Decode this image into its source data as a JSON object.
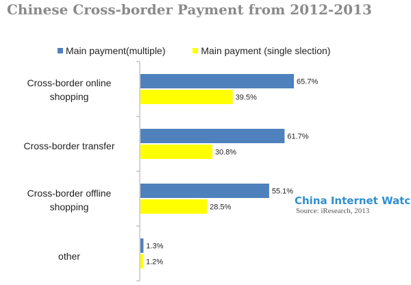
{
  "colors": {
    "multiple": "#4f81bd",
    "single": "#ffff00",
    "axis": "#aaaaaa"
  },
  "watermark": "China Internet Watch",
  "source": "Source: iResearch, 2013",
  "chart_data": {
    "type": "bar",
    "orientation": "horizontal",
    "title": "Chinese Cross-border Payment from 2012-2013",
    "categories": [
      "Cross-border online shopping",
      "Cross-border transfer",
      "Cross-border offline shopping",
      "other"
    ],
    "series": [
      {
        "name": "Main payment(multiple)",
        "values": [
          65.7,
          61.7,
          55.1,
          1.3
        ],
        "labels": [
          "65.7%",
          "61.7%",
          "55.1%",
          "1.3%"
        ]
      },
      {
        "name": "Main payment (single slection)",
        "values": [
          39.5,
          30.8,
          28.5,
          1.2
        ],
        "labels": [
          "39.5%",
          "30.8%",
          "28.5%",
          "1.2%"
        ]
      }
    ],
    "xlim": [
      0,
      100
    ],
    "grid": false,
    "legend": "top"
  }
}
